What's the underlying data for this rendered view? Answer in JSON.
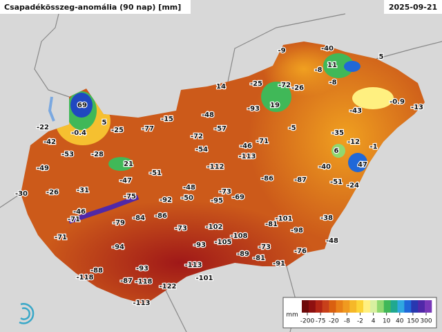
{
  "map": {
    "title": "Csapadékösszeg-anomália (90 nap) [mm]",
    "date": "2025-09-21",
    "labels": [
      -9,
      -40,
      5,
      -8,
      11,
      -8,
      -25,
      -72,
      -26,
      14,
      69,
      19,
      -93,
      -43,
      -0.9,
      -13,
      -22,
      5,
      -0.4,
      -25,
      -77,
      -15,
      -48,
      -57,
      -5,
      -35,
      -42,
      -72,
      -12,
      -1,
      -53,
      -28,
      -54,
      -46,
      -71,
      6,
      -49,
      21,
      -112,
      -113,
      -40,
      47,
      -51,
      -47,
      -86,
      -87,
      -51,
      -24,
      -30,
      -26,
      -31,
      -48,
      -73,
      -75,
      -92,
      -50,
      -95,
      -69,
      -46,
      -71,
      -86,
      -84,
      -79,
      -101,
      -81,
      -38,
      -73,
      -102,
      -98,
      -71,
      -108,
      -105,
      -93,
      -48,
      -94,
      -73,
      -89,
      -76,
      -81,
      -91,
      -93,
      -88,
      -113,
      -118,
      -87,
      -118,
      -101,
      -122,
      -113
    ],
    "legend": {
      "unit": "mm",
      "ticks": [
        -200,
        -75,
        -20,
        -8,
        -2,
        4,
        10,
        40,
        150,
        300
      ],
      "colors": [
        "#6e0a0a",
        "#8e1010",
        "#b22515",
        "#c8401a",
        "#da6010",
        "#e88018",
        "#f09a20",
        "#f6b828",
        "#fcd436",
        "#fff080",
        "#d8f0a0",
        "#90d870",
        "#40b858",
        "#20a890",
        "#30a8e0",
        "#2068d8",
        "#2838b0",
        "#5028a8",
        "#7838b8"
      ]
    }
  }
}
